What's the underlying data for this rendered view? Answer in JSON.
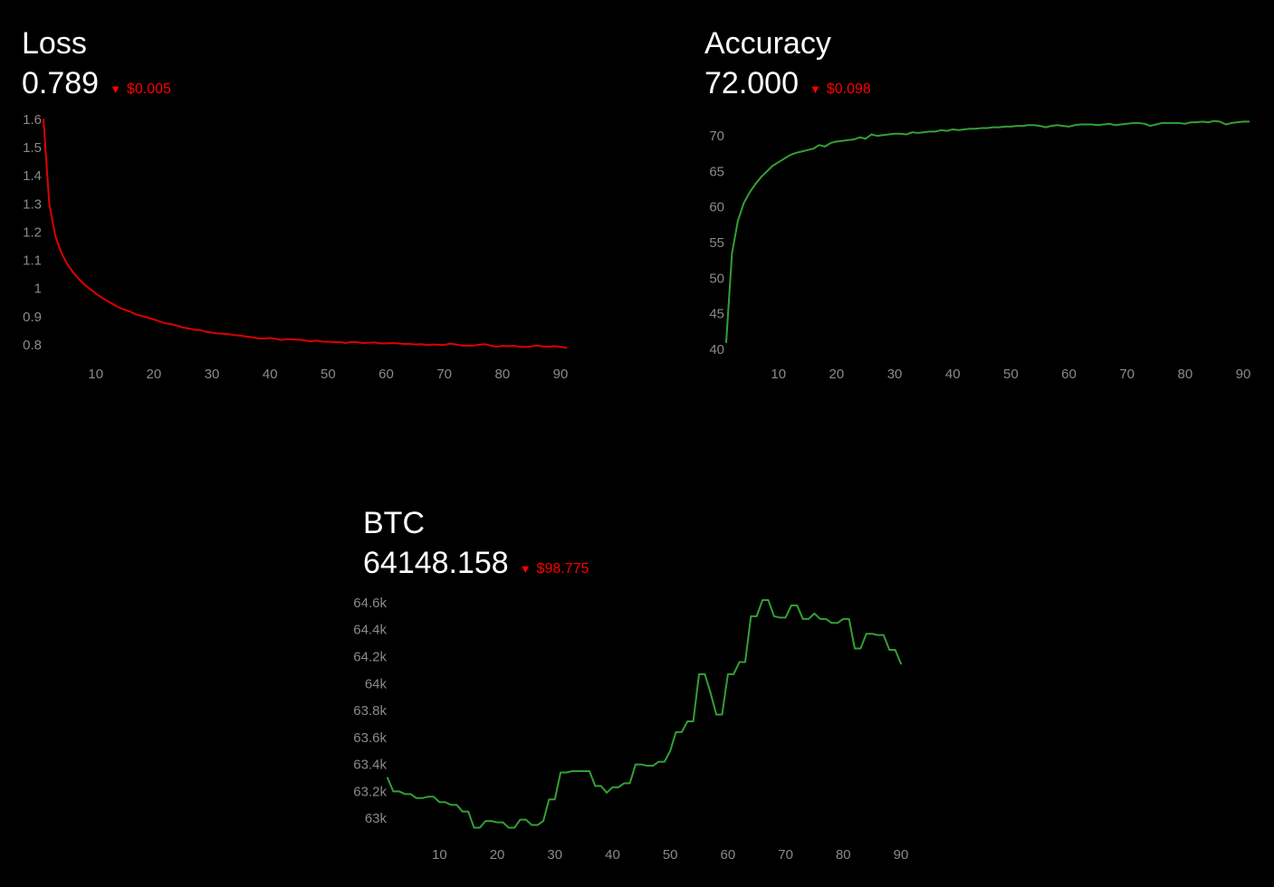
{
  "colors": {
    "background": "#000000",
    "text": "#ffffff",
    "tick": "#8a8a8a",
    "down": "#ff0000",
    "loss_line": "#e00000",
    "accuracy_line": "#33a035",
    "btc_line": "#33a035"
  },
  "panels": {
    "loss": {
      "title": "Loss",
      "price": "0.789",
      "arrow": "▼",
      "change": "$0.005",
      "change_direction": "down"
    },
    "accuracy": {
      "title": "Accuracy",
      "price": "72.000",
      "arrow": "▼",
      "change": "$0.098",
      "change_direction": "down"
    },
    "btc": {
      "title": "BTC",
      "price": "64148.158",
      "arrow": "▼",
      "change": "$98.775",
      "change_direction": "down"
    }
  },
  "chart_data": [
    {
      "id": "loss",
      "type": "line",
      "title": "Loss",
      "grid": false,
      "xlim": [
        1,
        90
      ],
      "ylim": [
        0.79,
        1.6
      ],
      "x_ticks": [
        10,
        20,
        30,
        40,
        50,
        60,
        70,
        80,
        90
      ],
      "y_ticks": [
        {
          "value": 0.8,
          "label": "0.8"
        },
        {
          "value": 0.9,
          "label": "0.9"
        },
        {
          "value": 1.0,
          "label": "1"
        },
        {
          "value": 1.1,
          "label": "1.1"
        },
        {
          "value": 1.2,
          "label": "1.2"
        },
        {
          "value": 1.3,
          "label": "1.3"
        },
        {
          "value": 1.4,
          "label": "1.4"
        },
        {
          "value": 1.5,
          "label": "1.5"
        },
        {
          "value": 1.6,
          "label": "1.6"
        }
      ],
      "series": [
        {
          "color": "#e00000",
          "values": [
            1.6,
            1.3,
            1.19,
            1.13,
            1.09,
            1.06,
            1.035,
            1.015,
            0.998,
            0.982,
            0.968,
            0.955,
            0.944,
            0.932,
            0.924,
            0.917,
            0.907,
            0.902,
            0.896,
            0.89,
            0.883,
            0.876,
            0.873,
            0.868,
            0.861,
            0.858,
            0.853,
            0.852,
            0.846,
            0.843,
            0.84,
            0.839,
            0.837,
            0.834,
            0.832,
            0.829,
            0.826,
            0.823,
            0.822,
            0.824,
            0.821,
            0.817,
            0.82,
            0.818,
            0.818,
            0.815,
            0.812,
            0.815,
            0.811,
            0.811,
            0.809,
            0.81,
            0.806,
            0.81,
            0.809,
            0.806,
            0.807,
            0.808,
            0.805,
            0.805,
            0.806,
            0.805,
            0.803,
            0.803,
            0.801,
            0.802,
            0.799,
            0.801,
            0.8,
            0.799,
            0.804,
            0.801,
            0.797,
            0.797,
            0.797,
            0.8,
            0.802,
            0.797,
            0.793,
            0.796,
            0.795,
            0.796,
            0.793,
            0.792,
            0.794,
            0.797,
            0.794,
            0.793,
            0.795,
            0.793,
            0.789
          ]
        }
      ]
    },
    {
      "id": "accuracy",
      "type": "line",
      "title": "Accuracy",
      "grid": false,
      "xlim": [
        1,
        90
      ],
      "ylim": [
        40,
        72.3
      ],
      "x_ticks": [
        10,
        20,
        30,
        40,
        50,
        60,
        70,
        80,
        90
      ],
      "y_ticks": [
        {
          "value": 40,
          "label": "40"
        },
        {
          "value": 45,
          "label": "45"
        },
        {
          "value": 50,
          "label": "50"
        },
        {
          "value": 55,
          "label": "55"
        },
        {
          "value": 60,
          "label": "60"
        },
        {
          "value": 65,
          "label": "65"
        },
        {
          "value": 70,
          "label": "70"
        }
      ],
      "series": [
        {
          "color": "#33a035",
          "values": [
            41,
            53.5,
            58,
            60.5,
            62,
            63.2,
            64.2,
            65,
            65.8,
            66.3,
            66.8,
            67.3,
            67.6,
            67.8,
            68,
            68.2,
            68.7,
            68.5,
            69,
            69.2,
            69.3,
            69.4,
            69.5,
            69.8,
            69.6,
            70.2,
            70,
            70.1,
            70.2,
            70.3,
            70.3,
            70.2,
            70.5,
            70.4,
            70.5,
            70.6,
            70.6,
            70.8,
            70.7,
            70.9,
            70.8,
            70.9,
            71,
            71,
            71.1,
            71.1,
            71.2,
            71.2,
            71.3,
            71.3,
            71.4,
            71.4,
            71.5,
            71.5,
            71.4,
            71.2,
            71.4,
            71.5,
            71.4,
            71.3,
            71.5,
            71.6,
            71.6,
            71.6,
            71.5,
            71.6,
            71.7,
            71.5,
            71.6,
            71.7,
            71.8,
            71.8,
            71.7,
            71.4,
            71.6,
            71.8,
            71.8,
            71.8,
            71.8,
            71.7,
            71.9,
            71.9,
            72,
            71.9,
            72.1,
            72,
            71.6,
            71.8,
            71.9,
            72,
            72
          ]
        }
      ]
    },
    {
      "id": "btc",
      "type": "line",
      "title": "BTC",
      "grid": false,
      "xlim": [
        1,
        90
      ],
      "ylim": [
        62900,
        64640
      ],
      "x_ticks": [
        10,
        20,
        30,
        40,
        50,
        60,
        70,
        80,
        90
      ],
      "y_ticks": [
        {
          "value": 63000,
          "label": "63k"
        },
        {
          "value": 63200,
          "label": "63.2k"
        },
        {
          "value": 63400,
          "label": "63.4k"
        },
        {
          "value": 63600,
          "label": "63.6k"
        },
        {
          "value": 63800,
          "label": "63.8k"
        },
        {
          "value": 64000,
          "label": "64k"
        },
        {
          "value": 64200,
          "label": "64.2k"
        },
        {
          "value": 64400,
          "label": "64.4k"
        },
        {
          "value": 64600,
          "label": "64.6k"
        }
      ],
      "series": [
        {
          "color": "#33a035",
          "values": [
            63300,
            63200,
            63200,
            63180,
            63180,
            63150,
            63150,
            63160,
            63160,
            63120,
            63120,
            63100,
            63100,
            63050,
            63050,
            62930,
            62930,
            62980,
            62980,
            62970,
            62970,
            62930,
            62930,
            62990,
            62990,
            62950,
            62950,
            62980,
            63140,
            63140,
            63340,
            63340,
            63350,
            63350,
            63350,
            63350,
            63240,
            63240,
            63190,
            63230,
            63230,
            63260,
            63260,
            63400,
            63400,
            63390,
            63390,
            63420,
            63420,
            63500,
            63640,
            63640,
            63720,
            63720,
            64070,
            64070,
            63930,
            63770,
            63770,
            64070,
            64070,
            64160,
            64160,
            64500,
            64500,
            64620,
            64620,
            64500,
            64490,
            64490,
            64580,
            64580,
            64480,
            64480,
            64520,
            64480,
            64480,
            64450,
            64450,
            64480,
            64480,
            64260,
            64260,
            64370,
            64370,
            64360,
            64360,
            64250,
            64250,
            64148
          ]
        }
      ]
    }
  ]
}
